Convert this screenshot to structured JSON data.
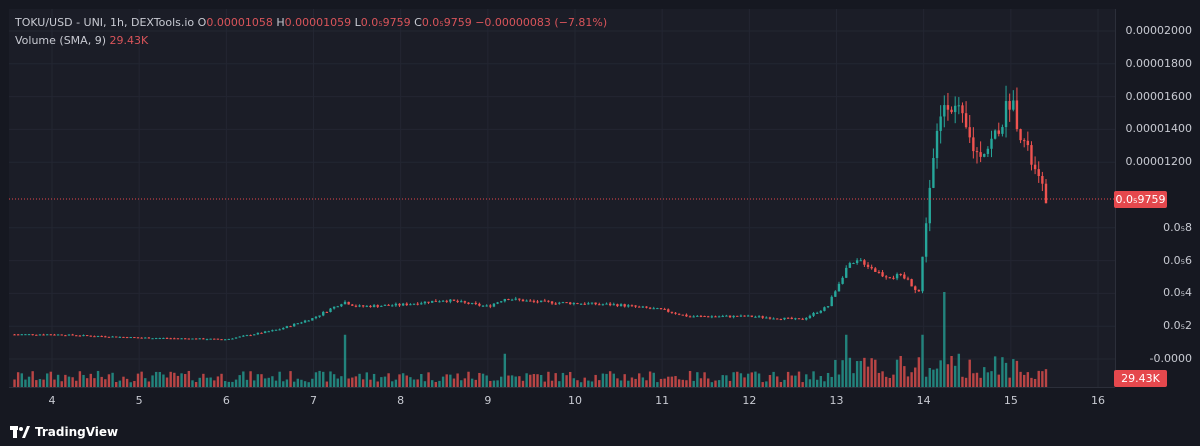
{
  "legend": {
    "symbol": "TOKU/USD",
    "market": "- UNI, 1h, DEXTools.io",
    "o_label": "O",
    "o_value": "0.00001058",
    "h_label": "H",
    "h_value": "0.00001059",
    "l_label": "L",
    "l_value": "0.0₅9759",
    "c_label": "C",
    "c_value": "0.0₅9759",
    "change": "−0.00000083 (−7.81%)",
    "volume_label": "Volume (SMA, 9)",
    "volume_value": "29.43K"
  },
  "price_tag": "0.0₅9759",
  "volume_tag": "29.43K",
  "brand": "TradingView",
  "colors": {
    "up": "#26a69a",
    "down": "#ef5350",
    "background": "#1b1d27",
    "tag": "#e5484d"
  },
  "chart_data": {
    "type": "candlestick",
    "y_axis": {
      "ticks": [
        "0.00002000",
        "0.00001800",
        "0.00001600",
        "0.00001400",
        "0.00001200",
        "0.0₅8",
        "0.0₅6",
        "0.0₅4",
        "0.0₅2",
        "-0.0000"
      ],
      "tick_values": [
        2e-05,
        1.8e-05,
        1.6e-05,
        1.4e-05,
        1.2e-05,
        8e-06,
        6e-06,
        4e-06,
        2e-06,
        0.0
      ],
      "range": [
        0.0,
        2e-05
      ]
    },
    "x_axis": {
      "ticks": [
        "4",
        "5",
        "6",
        "7",
        "8",
        "9",
        "10",
        "11",
        "12",
        "13",
        "14",
        "15",
        "16"
      ],
      "tick_days": [
        4,
        5,
        6,
        7,
        8,
        9,
        10,
        11,
        12,
        13,
        14,
        15,
        16
      ]
    },
    "last_price": 9.759e-06,
    "close_series_approx": [
      {
        "day": 3.6,
        "close": 1.5e-06
      },
      {
        "day": 4.0,
        "close": 1.5e-06
      },
      {
        "day": 5.0,
        "close": 1.3e-06
      },
      {
        "day": 6.0,
        "close": 1.2e-06
      },
      {
        "day": 6.6,
        "close": 1.8e-06
      },
      {
        "day": 7.0,
        "close": 2.5e-06
      },
      {
        "day": 7.35,
        "close": 3.5e-06
      },
      {
        "day": 7.5,
        "close": 3.2e-06
      },
      {
        "day": 8.0,
        "close": 3.3e-06
      },
      {
        "day": 8.5,
        "close": 3.6e-06
      },
      {
        "day": 9.0,
        "close": 3.2e-06
      },
      {
        "day": 9.2,
        "close": 3.7e-06
      },
      {
        "day": 9.5,
        "close": 3.5e-06
      },
      {
        "day": 10.0,
        "close": 3.4e-06
      },
      {
        "day": 10.5,
        "close": 3.3e-06
      },
      {
        "day": 11.0,
        "close": 3e-06
      },
      {
        "day": 11.3,
        "close": 2.6e-06
      },
      {
        "day": 12.0,
        "close": 2.6e-06
      },
      {
        "day": 12.6,
        "close": 2.4e-06
      },
      {
        "day": 12.9,
        "close": 3.2e-06
      },
      {
        "day": 13.1,
        "close": 5.5e-06
      },
      {
        "day": 13.3,
        "close": 6e-06
      },
      {
        "day": 13.5,
        "close": 5.2e-06
      },
      {
        "day": 13.8,
        "close": 4.9e-06
      },
      {
        "day": 13.95,
        "close": 4.1e-06
      },
      {
        "day": 14.05,
        "close": 9.7e-06
      },
      {
        "day": 14.15,
        "close": 1.35e-05
      },
      {
        "day": 14.25,
        "close": 1.6e-05
      },
      {
        "day": 14.4,
        "close": 1.5e-05
      },
      {
        "day": 14.6,
        "close": 1.25e-05
      },
      {
        "day": 14.75,
        "close": 1.3e-05
      },
      {
        "day": 14.9,
        "close": 1.45e-05
      },
      {
        "day": 15.0,
        "close": 1.6e-05
      },
      {
        "day": 15.1,
        "close": 1.4e-05
      },
      {
        "day": 15.25,
        "close": 1.18e-05
      },
      {
        "day": 15.4,
        "close": 9.8e-06
      }
    ],
    "volume_spikes_approx": [
      {
        "day": 7.35,
        "rel": 0.55
      },
      {
        "day": 9.2,
        "rel": 0.35
      },
      {
        "day": 13.1,
        "rel": 0.55
      },
      {
        "day": 14.0,
        "rel": 0.55
      },
      {
        "day": 14.25,
        "rel": 1.0
      },
      {
        "day": 14.4,
        "rel": 0.35
      }
    ]
  }
}
